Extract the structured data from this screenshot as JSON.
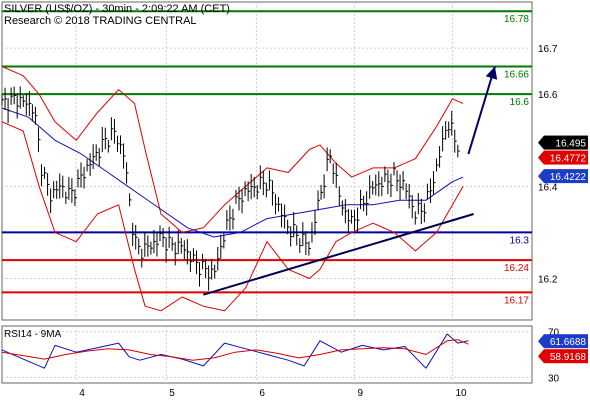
{
  "header": {
    "title": "SILVER (US$/OZ) - 30min - 2:09:22 AM (CET)",
    "subtitle": "Research © 2018 TRADING CENTRAL"
  },
  "colors": {
    "price": "#000000",
    "bollinger": "#e00000",
    "moving_average": "#1010c0",
    "resistance": "#007a00",
    "pivot": "#0000a0",
    "support": "#e00000",
    "trendline": "#000050",
    "arrow": "#000060",
    "rsi": "#1010c0",
    "rsi_ma": "#d00000",
    "grid": "#cfcfcf",
    "tag_dark": "#000000",
    "tag_red": "#e00000",
    "tag_blue": "#1a3cc8"
  },
  "chart_data": [
    {
      "type": "candlestick",
      "title": "SILVER (US$/OZ) - 30min - 2:09:22 AM (CET)",
      "ylim": [
        16.11,
        16.8
      ],
      "y_ticks": [
        16.2,
        16.4,
        16.6,
        16.7
      ],
      "x_ticks": [
        "4",
        "5",
        "6",
        "9",
        "10"
      ],
      "last_price": "16.495",
      "price_tags": [
        {
          "label": "16.495",
          "value": 16.495,
          "style": "dark"
        },
        {
          "label": "16.4772",
          "value": 16.4772,
          "style": "red"
        },
        {
          "label": "16.4222",
          "value": 16.4222,
          "style": "blue"
        }
      ],
      "levels": [
        {
          "label": "16.78",
          "value": 16.78,
          "kind": "resistance"
        },
        {
          "label": "16.66",
          "value": 16.66,
          "kind": "resistance"
        },
        {
          "label": "16.6",
          "value": 16.6,
          "kind": "resistance"
        },
        {
          "label": "16.3",
          "value": 16.3,
          "kind": "pivot"
        },
        {
          "label": "16.24",
          "value": 16.24,
          "kind": "support"
        },
        {
          "label": "16.17",
          "value": 16.17,
          "kind": "support"
        }
      ],
      "trendline": {
        "x": [
          0.38,
          0.89
        ],
        "y": [
          16.165,
          16.34
        ]
      },
      "target_arrow": {
        "x": [
          0.88,
          0.93
        ],
        "y": [
          16.47,
          16.66
        ]
      },
      "price_path": {
        "x": [
          0,
          0.03,
          0.06,
          0.075,
          0.09,
          0.11,
          0.13,
          0.16,
          0.19,
          0.21,
          0.23,
          0.25,
          0.26,
          0.28,
          0.3,
          0.32,
          0.34,
          0.36,
          0.38,
          0.4,
          0.42,
          0.44,
          0.46,
          0.48,
          0.5,
          0.52,
          0.54,
          0.56,
          0.58,
          0.6,
          0.62,
          0.64,
          0.66,
          0.68,
          0.7,
          0.72,
          0.74,
          0.76,
          0.78,
          0.8,
          0.82,
          0.84,
          0.86
        ],
        "y": [
          16.58,
          16.59,
          16.57,
          16.44,
          16.38,
          16.4,
          16.38,
          16.44,
          16.49,
          16.52,
          16.47,
          16.28,
          16.26,
          16.27,
          16.29,
          16.27,
          16.27,
          16.24,
          16.22,
          16.21,
          16.3,
          16.36,
          16.39,
          16.4,
          16.41,
          16.36,
          16.31,
          16.29,
          16.27,
          16.38,
          16.47,
          16.36,
          16.32,
          16.36,
          16.4,
          16.41,
          16.42,
          16.4,
          16.34,
          16.36,
          16.44,
          16.54,
          16.49
        ]
      },
      "bollinger_upper": {
        "x": [
          0,
          0.04,
          0.07,
          0.1,
          0.14,
          0.18,
          0.22,
          0.25,
          0.27,
          0.3,
          0.34,
          0.38,
          0.42,
          0.46,
          0.5,
          0.54,
          0.58,
          0.6,
          0.63,
          0.66,
          0.7,
          0.74,
          0.78,
          0.82,
          0.85,
          0.87
        ],
        "y": [
          16.66,
          16.64,
          16.6,
          16.54,
          16.5,
          16.56,
          16.61,
          16.58,
          16.48,
          16.34,
          16.3,
          16.31,
          16.36,
          16.4,
          16.44,
          16.43,
          16.48,
          16.49,
          16.45,
          16.42,
          16.44,
          16.44,
          16.46,
          16.53,
          16.59,
          16.58
        ]
      },
      "bollinger_lower": {
        "x": [
          0,
          0.04,
          0.07,
          0.1,
          0.14,
          0.18,
          0.22,
          0.25,
          0.27,
          0.3,
          0.34,
          0.38,
          0.42,
          0.46,
          0.5,
          0.54,
          0.58,
          0.6,
          0.63,
          0.66,
          0.7,
          0.74,
          0.78,
          0.82,
          0.85,
          0.87
        ],
        "y": [
          16.54,
          16.52,
          16.4,
          16.3,
          16.28,
          16.34,
          16.36,
          16.22,
          16.14,
          16.13,
          16.16,
          16.14,
          16.13,
          16.18,
          16.28,
          16.22,
          16.2,
          16.22,
          16.28,
          16.3,
          16.32,
          16.3,
          16.26,
          16.3,
          16.36,
          16.4
        ]
      },
      "moving_average": {
        "x": [
          0,
          0.05,
          0.1,
          0.15,
          0.2,
          0.25,
          0.3,
          0.35,
          0.4,
          0.45,
          0.5,
          0.55,
          0.6,
          0.65,
          0.7,
          0.75,
          0.8,
          0.85,
          0.87
        ],
        "y": [
          16.57,
          16.55,
          16.5,
          16.47,
          16.43,
          16.39,
          16.35,
          16.31,
          16.29,
          16.3,
          16.33,
          16.34,
          16.35,
          16.36,
          16.36,
          16.37,
          16.37,
          16.41,
          16.42
        ]
      }
    },
    {
      "type": "line",
      "title": "RSI14 - 9MA",
      "ylim": [
        25,
        75
      ],
      "y_ticks": [
        30,
        70
      ],
      "price_tags": [
        {
          "label": "61.6688",
          "value": 61.6688,
          "style": "blue"
        },
        {
          "label": "58.9168",
          "value": 58.9168,
          "style": "red"
        }
      ],
      "series": [
        {
          "name": "RSI14",
          "x": [
            0,
            0.04,
            0.08,
            0.1,
            0.14,
            0.18,
            0.22,
            0.24,
            0.26,
            0.3,
            0.34,
            0.38,
            0.42,
            0.46,
            0.5,
            0.54,
            0.57,
            0.6,
            0.64,
            0.68,
            0.72,
            0.76,
            0.8,
            0.84,
            0.86,
            0.88
          ],
          "y": [
            54,
            46,
            38,
            58,
            52,
            56,
            60,
            48,
            45,
            50,
            46,
            40,
            60,
            55,
            50,
            45,
            40,
            62,
            52,
            58,
            54,
            57,
            38,
            68,
            60,
            62
          ]
        },
        {
          "name": "9MA",
          "x": [
            0,
            0.04,
            0.08,
            0.12,
            0.16,
            0.2,
            0.24,
            0.28,
            0.32,
            0.36,
            0.4,
            0.44,
            0.48,
            0.52,
            0.56,
            0.6,
            0.64,
            0.68,
            0.72,
            0.76,
            0.8,
            0.84,
            0.86,
            0.88
          ],
          "y": [
            52,
            49,
            46,
            50,
            53,
            55,
            54,
            50,
            48,
            45,
            47,
            52,
            54,
            51,
            47,
            50,
            54,
            55,
            56,
            55,
            50,
            62,
            63,
            59
          ]
        }
      ]
    }
  ]
}
